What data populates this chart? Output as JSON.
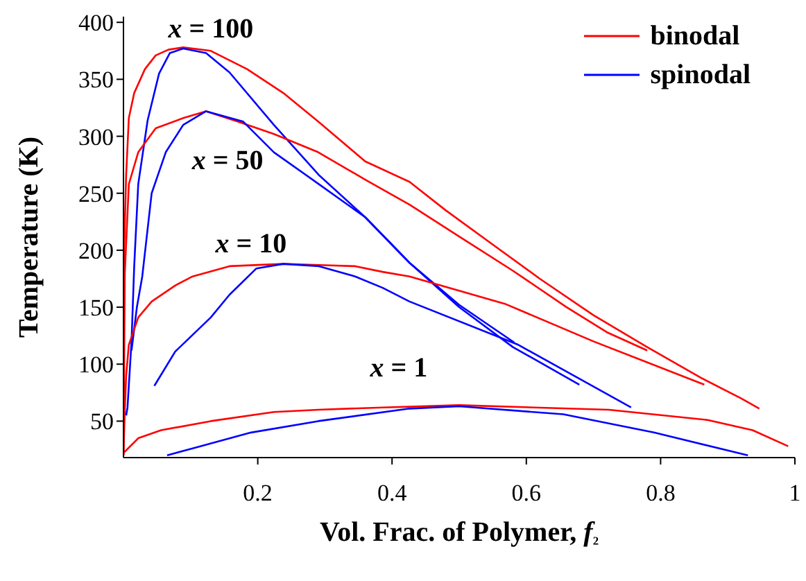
{
  "chart_data": {
    "type": "line",
    "xlabel": "Vol. Frac. of Polymer, f₂",
    "ylabel": "Temperature (K)",
    "xlim": [
      0,
      1
    ],
    "xticks": [
      0.2,
      0.4,
      0.6,
      0.8,
      1
    ],
    "ylim": [
      18,
      405
    ],
    "yticks": [
      50,
      100,
      150,
      200,
      250,
      300,
      350,
      400
    ],
    "grid": false,
    "legend": "top right",
    "marker": "none",
    "line_style": "solid",
    "annotations": [
      "x = 100",
      "x = 50",
      "x = 10",
      "x = 1"
    ],
    "series": [
      {
        "name": "binodal",
        "color": "#ff0000",
        "x": [
          0,
          0.001,
          0.004,
          0.008,
          0.016,
          0.032,
          0.048,
          0.067,
          0.089,
          0.13,
          0.184,
          0.238,
          0.29,
          0.36,
          0.426,
          0.48,
          0.55,
          0.62,
          0.7,
          0.78,
          0.86,
          0.92,
          0.947
        ],
        "values": [
          20,
          200,
          266,
          316,
          338,
          359,
          371,
          376,
          378,
          375,
          359,
          338,
          313,
          278,
          260,
          235,
          205,
          175,
          143,
          115,
          88,
          70,
          61
        ]
      },
      {
        "name": "spinodal",
        "color": "#0000ff",
        "x": [
          0.004,
          0.006,
          0.012,
          0.016,
          0.022,
          0.036,
          0.053,
          0.069,
          0.089,
          0.123,
          0.158,
          0.224,
          0.291,
          0.36,
          0.426,
          0.5,
          0.58,
          0.679
        ],
        "values": [
          55,
          62,
          120,
          186,
          258,
          314,
          355,
          373,
          377,
          373,
          356,
          310,
          266,
          229,
          189,
          150,
          115,
          82
        ]
      },
      {
        "color": "#ff0000",
        "x": [
          0,
          0.002,
          0.008,
          0.022,
          0.048,
          0.089,
          0.123,
          0.17,
          0.224,
          0.29,
          0.36,
          0.426,
          0.5,
          0.58,
          0.66,
          0.72,
          0.78
        ],
        "values": [
          20,
          180,
          258,
          286,
          307,
          316,
          322,
          313,
          302,
          286,
          262,
          240,
          212,
          182,
          150,
          128,
          112
        ]
      },
      {
        "color": "#0000ff",
        "x": [
          0.012,
          0.02,
          0.028,
          0.042,
          0.063,
          0.089,
          0.123,
          0.178,
          0.224,
          0.291,
          0.36,
          0.426,
          0.5,
          0.582
        ],
        "values": [
          112,
          150,
          177,
          250,
          286,
          310,
          322,
          313,
          286,
          258,
          229,
          189,
          152,
          119
        ]
      },
      {
        "color": "#ff0000",
        "x": [
          0,
          0.002,
          0.004,
          0.008,
          0.022,
          0.042,
          0.077,
          0.103,
          0.158,
          0.238,
          0.291,
          0.345,
          0.386,
          0.426,
          0.568,
          0.7,
          0.865
        ],
        "values": [
          20,
          60,
          90,
          117,
          141,
          155,
          169,
          177,
          186,
          188,
          187,
          186,
          181,
          177,
          153,
          120,
          82
        ]
      },
      {
        "color": "#0000ff",
        "x": [
          0.046,
          0.077,
          0.13,
          0.158,
          0.198,
          0.238,
          0.291,
          0.345,
          0.386,
          0.426,
          0.588,
          0.756
        ],
        "values": [
          81,
          111,
          141,
          161,
          184,
          188,
          186,
          177,
          167,
          155,
          117,
          62
        ]
      },
      {
        "color": "#ff0000",
        "x": [
          0,
          0.022,
          0.056,
          0.13,
          0.224,
          0.29,
          0.386,
          0.5,
          0.723,
          0.87,
          0.937,
          0.99
        ],
        "values": [
          22,
          35,
          42,
          50,
          58,
          60,
          62,
          64,
          60,
          51,
          42,
          28
        ]
      },
      {
        "color": "#0000ff",
        "x": [
          0.065,
          0.103,
          0.19,
          0.29,
          0.426,
          0.5,
          0.655,
          0.79,
          0.93
        ],
        "values": [
          20,
          26,
          40,
          50,
          61,
          63,
          56,
          40,
          20
        ]
      }
    ]
  }
}
